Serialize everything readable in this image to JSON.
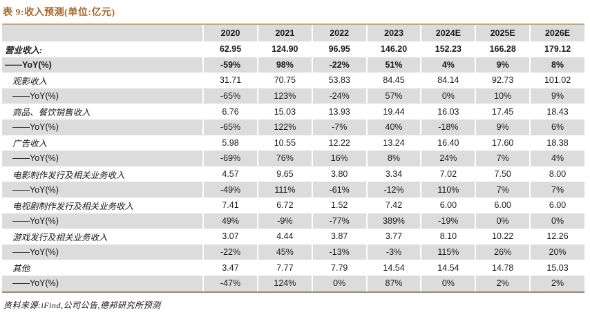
{
  "title": "表 9:收入预测(单位:亿元)",
  "footer": "资料来源:iFind,公司公告,德邦研究所预测",
  "colors": {
    "title_accent": "#a5682c",
    "shaded_row_bg": "#dcdcdc",
    "table_top_border": "#c6a77c",
    "table_bottom_border": "#9d8a64"
  },
  "chart_data": {
    "type": "table",
    "title": "表 9:收入预测(单位:亿元)",
    "columns": [
      "2020",
      "2021",
      "2022",
      "2023",
      "2024E",
      "2025E",
      "2026E"
    ],
    "rows": [
      {
        "label": "营业收入:",
        "values": [
          "62.95",
          "124.90",
          "96.95",
          "146.20",
          "152.23",
          "166.28",
          "179.12"
        ],
        "bold": true,
        "shaded": false,
        "yoy": false,
        "indent": 0
      },
      {
        "label": "——YoY(%)",
        "values": [
          "-59%",
          "98%",
          "-22%",
          "51%",
          "4%",
          "9%",
          "8%"
        ],
        "bold": true,
        "shaded": true,
        "yoy": true,
        "indent": 0
      },
      {
        "label": "观影收入",
        "values": [
          "31.71",
          "70.75",
          "53.83",
          "84.45",
          "84.14",
          "92.73",
          "101.02"
        ],
        "bold": false,
        "shaded": false,
        "yoy": false,
        "indent": 1
      },
      {
        "label": "——YoY(%)",
        "values": [
          "-65%",
          "123%",
          "-24%",
          "57%",
          "0%",
          "10%",
          "9%"
        ],
        "bold": false,
        "shaded": true,
        "yoy": true,
        "indent": 1
      },
      {
        "label": "商品、餐饮销售收入",
        "values": [
          "6.76",
          "15.03",
          "13.93",
          "19.44",
          "16.03",
          "17.45",
          "18.43"
        ],
        "bold": false,
        "shaded": false,
        "yoy": false,
        "indent": 1
      },
      {
        "label": "——YoY(%)",
        "values": [
          "-65%",
          "122%",
          "-7%",
          "40%",
          "-18%",
          "9%",
          "6%"
        ],
        "bold": false,
        "shaded": true,
        "yoy": true,
        "indent": 1
      },
      {
        "label": "广告收入",
        "values": [
          "5.98",
          "10.55",
          "12.22",
          "13.24",
          "16.40",
          "17.60",
          "18.38"
        ],
        "bold": false,
        "shaded": false,
        "yoy": false,
        "indent": 1
      },
      {
        "label": "——YoY(%)",
        "values": [
          "-69%",
          "76%",
          "16%",
          "8%",
          "24%",
          "7%",
          "4%"
        ],
        "bold": false,
        "shaded": true,
        "yoy": true,
        "indent": 1
      },
      {
        "label": "电影制作发行及相关业务收入",
        "values": [
          "4.57",
          "9.65",
          "3.80",
          "3.34",
          "7.02",
          "7.50",
          "8.00"
        ],
        "bold": false,
        "shaded": false,
        "yoy": false,
        "indent": 1
      },
      {
        "label": "——YoY(%)",
        "values": [
          "-49%",
          "111%",
          "-61%",
          "-12%",
          "110%",
          "7%",
          "7%"
        ],
        "bold": false,
        "shaded": true,
        "yoy": true,
        "indent": 1
      },
      {
        "label": "电视剧制作发行及相关业务收入",
        "values": [
          "7.41",
          "6.72",
          "1.52",
          "7.42",
          "6.00",
          "6.00",
          "6.00"
        ],
        "bold": false,
        "shaded": false,
        "yoy": false,
        "indent": 1
      },
      {
        "label": "——YoY(%)",
        "values": [
          "49%",
          "-9%",
          "-77%",
          "389%",
          "-19%",
          "0%",
          "0%"
        ],
        "bold": false,
        "shaded": true,
        "yoy": true,
        "indent": 1
      },
      {
        "label": "游戏发行及相关业务收入",
        "values": [
          "3.07",
          "4.44",
          "3.87",
          "3.77",
          "8.10",
          "10.22",
          "12.26"
        ],
        "bold": false,
        "shaded": false,
        "yoy": false,
        "indent": 1
      },
      {
        "label": "——YoY(%)",
        "values": [
          "-22%",
          "45%",
          "-13%",
          "-3%",
          "115%",
          "26%",
          "20%"
        ],
        "bold": false,
        "shaded": true,
        "yoy": true,
        "indent": 1
      },
      {
        "label": "其他",
        "values": [
          "3.47",
          "7.77",
          "7.79",
          "14.54",
          "14.54",
          "14.78",
          "15.03"
        ],
        "bold": false,
        "shaded": false,
        "yoy": false,
        "indent": 1
      },
      {
        "label": "——YoY(%)",
        "values": [
          "-47%",
          "124%",
          "0%",
          "87%",
          "0%",
          "2%",
          "2%"
        ],
        "bold": false,
        "shaded": true,
        "yoy": true,
        "indent": 1
      }
    ]
  }
}
